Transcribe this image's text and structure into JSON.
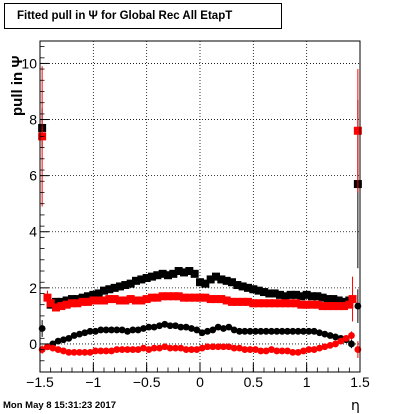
{
  "title": "Fitted pull in Ψ  for Global Rec All EtapT",
  "timestamp": "Mon May  8 15:31:23 2017",
  "chart_data": {
    "type": "scatter",
    "title": "Fitted pull in Ψ  for Global Rec All EtapT",
    "xlabel": "η",
    "ylabel": "pull in Ψ",
    "xlim": [
      -1.5,
      1.5
    ],
    "ylim": [
      -1.0,
      10.8
    ],
    "xticks": [
      -1.5,
      -1,
      -0.5,
      0,
      0.5,
      1,
      1.5
    ],
    "xtick_labels": [
      "−1.5",
      "−1",
      "−0.5",
      "0",
      "0.5",
      "1",
      "1.5"
    ],
    "yticks": [
      0,
      2,
      4,
      6,
      8,
      10
    ],
    "ytick_labels": [
      "0",
      "2",
      "4",
      "6",
      "8",
      "10"
    ],
    "grid": true,
    "series": [
      {
        "color": "#000000",
        "marker": "square",
        "x": [
          -1.48,
          -1.4,
          -1.35,
          -1.3,
          -1.25,
          -1.2,
          -1.15,
          -1.1,
          -1.05,
          -1.0,
          -0.95,
          -0.9,
          -0.85,
          -0.8,
          -0.75,
          -0.7,
          -0.65,
          -0.6,
          -0.55,
          -0.5,
          -0.45,
          -0.4,
          -0.35,
          -0.3,
          -0.25,
          -0.2,
          -0.15,
          -0.1,
          -0.05,
          0.0,
          0.05,
          0.1,
          0.15,
          0.2,
          0.25,
          0.3,
          0.35,
          0.4,
          0.45,
          0.5,
          0.55,
          0.6,
          0.65,
          0.7,
          0.75,
          0.8,
          0.85,
          0.9,
          0.95,
          1.0,
          1.05,
          1.1,
          1.15,
          1.2,
          1.25,
          1.3,
          1.35,
          1.4,
          1.48
        ],
        "y": [
          7.7,
          1.4,
          1.5,
          1.5,
          1.55,
          1.6,
          1.6,
          1.65,
          1.7,
          1.75,
          1.8,
          1.9,
          1.95,
          2.0,
          2.05,
          2.1,
          2.15,
          2.25,
          2.3,
          2.35,
          2.4,
          2.45,
          2.5,
          2.45,
          2.5,
          2.6,
          2.55,
          2.6,
          2.5,
          2.2,
          2.15,
          2.3,
          2.4,
          2.3,
          2.25,
          2.2,
          2.1,
          2.05,
          2.0,
          1.95,
          1.9,
          1.85,
          1.8,
          1.8,
          1.75,
          1.7,
          1.75,
          1.75,
          1.7,
          1.75,
          1.7,
          1.7,
          1.65,
          1.6,
          1.6,
          1.55,
          1.5,
          1.55,
          5.7
        ],
        "yerr": [
          0.7,
          0.1,
          0.1,
          0.1,
          0.08,
          0.08,
          0.08,
          0.08,
          0.08,
          0.08,
          0.08,
          0.08,
          0.08,
          0.08,
          0.08,
          0.08,
          0.08,
          0.08,
          0.08,
          0.08,
          0.08,
          0.08,
          0.08,
          0.08,
          0.08,
          0.08,
          0.08,
          0.08,
          0.08,
          0.08,
          0.08,
          0.08,
          0.08,
          0.08,
          0.08,
          0.08,
          0.08,
          0.08,
          0.08,
          0.08,
          0.08,
          0.08,
          0.08,
          0.08,
          0.08,
          0.08,
          0.08,
          0.08,
          0.08,
          0.08,
          0.08,
          0.08,
          0.08,
          0.08,
          0.1,
          0.1,
          0.1,
          0.1,
          3.0
        ]
      },
      {
        "color": "#ff0000",
        "marker": "square",
        "x": [
          -1.48,
          -1.43,
          -1.4,
          -1.35,
          -1.3,
          -1.25,
          -1.2,
          -1.15,
          -1.1,
          -1.05,
          -1.0,
          -0.95,
          -0.9,
          -0.85,
          -0.8,
          -0.75,
          -0.7,
          -0.65,
          -0.6,
          -0.55,
          -0.5,
          -0.45,
          -0.4,
          -0.35,
          -0.3,
          -0.25,
          -0.2,
          -0.15,
          -0.1,
          -0.05,
          0.0,
          0.05,
          0.1,
          0.15,
          0.2,
          0.25,
          0.3,
          0.35,
          0.4,
          0.45,
          0.5,
          0.55,
          0.6,
          0.65,
          0.7,
          0.75,
          0.8,
          0.85,
          0.9,
          0.95,
          1.0,
          1.05,
          1.1,
          1.15,
          1.2,
          1.25,
          1.3,
          1.35,
          1.4,
          1.43,
          1.48
        ],
        "y": [
          7.4,
          1.65,
          1.45,
          1.3,
          1.35,
          1.4,
          1.45,
          1.45,
          1.5,
          1.5,
          1.55,
          1.55,
          1.55,
          1.6,
          1.6,
          1.55,
          1.55,
          1.6,
          1.55,
          1.55,
          1.6,
          1.65,
          1.65,
          1.7,
          1.7,
          1.7,
          1.7,
          1.65,
          1.65,
          1.65,
          1.65,
          1.65,
          1.6,
          1.6,
          1.6,
          1.55,
          1.5,
          1.5,
          1.5,
          1.5,
          1.45,
          1.45,
          1.45,
          1.45,
          1.45,
          1.45,
          1.45,
          1.45,
          1.45,
          1.4,
          1.4,
          1.4,
          1.4,
          1.35,
          1.35,
          1.35,
          1.35,
          1.35,
          1.4,
          1.6,
          7.6
        ],
        "yerr": [
          2.5,
          0.25,
          0.1,
          0.1,
          0.08,
          0.08,
          0.08,
          0.08,
          0.08,
          0.08,
          0.08,
          0.08,
          0.08,
          0.08,
          0.08,
          0.08,
          0.08,
          0.08,
          0.08,
          0.08,
          0.08,
          0.08,
          0.08,
          0.08,
          0.08,
          0.08,
          0.08,
          0.08,
          0.08,
          0.08,
          0.08,
          0.08,
          0.08,
          0.08,
          0.08,
          0.08,
          0.08,
          0.08,
          0.08,
          0.08,
          0.08,
          0.08,
          0.08,
          0.08,
          0.08,
          0.08,
          0.08,
          0.08,
          0.08,
          0.08,
          0.08,
          0.08,
          0.08,
          0.08,
          0.08,
          0.08,
          0.1,
          0.1,
          0.1,
          0.8,
          2.2
        ]
      },
      {
        "color": "#000000",
        "marker": "circle",
        "x": [
          -1.48,
          -1.43,
          -1.38,
          -1.33,
          -1.28,
          -1.23,
          -1.18,
          -1.13,
          -1.08,
          -1.03,
          -0.98,
          -0.93,
          -0.88,
          -0.83,
          -0.78,
          -0.73,
          -0.68,
          -0.63,
          -0.58,
          -0.53,
          -0.48,
          -0.43,
          -0.38,
          -0.33,
          -0.28,
          -0.23,
          -0.18,
          -0.13,
          -0.08,
          -0.03,
          0.02,
          0.07,
          0.12,
          0.17,
          0.22,
          0.27,
          0.32,
          0.37,
          0.42,
          0.47,
          0.52,
          0.57,
          0.62,
          0.67,
          0.72,
          0.77,
          0.82,
          0.87,
          0.92,
          0.97,
          1.02,
          1.07,
          1.12,
          1.17,
          1.22,
          1.27,
          1.32,
          1.37,
          1.42,
          1.48
        ],
        "y": [
          0.55,
          -0.1,
          0.0,
          0.1,
          0.15,
          0.2,
          0.3,
          0.35,
          0.4,
          0.45,
          0.45,
          0.5,
          0.5,
          0.5,
          0.5,
          0.5,
          0.45,
          0.5,
          0.5,
          0.55,
          0.6,
          0.6,
          0.65,
          0.7,
          0.65,
          0.65,
          0.6,
          0.6,
          0.55,
          0.5,
          0.4,
          0.45,
          0.5,
          0.6,
          0.55,
          0.6,
          0.5,
          0.45,
          0.45,
          0.45,
          0.45,
          0.45,
          0.45,
          0.45,
          0.45,
          0.45,
          0.45,
          0.45,
          0.45,
          0.45,
          0.45,
          0.45,
          0.4,
          0.35,
          0.3,
          0.25,
          0.2,
          0.15,
          0.0,
          1.35
        ],
        "yerr": [
          0.3,
          0.1,
          0.08,
          0.08,
          0.08,
          0.08,
          0.08,
          0.08,
          0.08,
          0.08,
          0.08,
          0.08,
          0.08,
          0.08,
          0.08,
          0.08,
          0.08,
          0.08,
          0.08,
          0.08,
          0.08,
          0.08,
          0.08,
          0.08,
          0.08,
          0.08,
          0.08,
          0.08,
          0.08,
          0.08,
          0.08,
          0.08,
          0.08,
          0.08,
          0.08,
          0.08,
          0.08,
          0.08,
          0.08,
          0.08,
          0.08,
          0.08,
          0.08,
          0.08,
          0.08,
          0.08,
          0.08,
          0.08,
          0.08,
          0.08,
          0.08,
          0.08,
          0.08,
          0.08,
          0.08,
          0.08,
          0.08,
          0.1,
          0.15,
          0.6
        ]
      },
      {
        "color": "#ff0000",
        "marker": "circle",
        "x": [
          -1.48,
          -1.43,
          -1.38,
          -1.33,
          -1.28,
          -1.23,
          -1.18,
          -1.13,
          -1.08,
          -1.03,
          -0.98,
          -0.93,
          -0.88,
          -0.83,
          -0.78,
          -0.73,
          -0.68,
          -0.63,
          -0.58,
          -0.53,
          -0.48,
          -0.43,
          -0.38,
          -0.33,
          -0.28,
          -0.23,
          -0.18,
          -0.13,
          -0.08,
          -0.03,
          0.02,
          0.07,
          0.12,
          0.17,
          0.22,
          0.27,
          0.32,
          0.37,
          0.42,
          0.47,
          0.52,
          0.57,
          0.62,
          0.67,
          0.72,
          0.77,
          0.82,
          0.87,
          0.92,
          0.97,
          1.02,
          1.07,
          1.12,
          1.17,
          1.22,
          1.27,
          1.32,
          1.37,
          1.42,
          1.48
        ],
        "y": [
          -0.2,
          -0.1,
          -0.15,
          -0.2,
          -0.25,
          -0.3,
          -0.3,
          -0.3,
          -0.3,
          -0.3,
          -0.25,
          -0.25,
          -0.25,
          -0.25,
          -0.2,
          -0.2,
          -0.2,
          -0.2,
          -0.2,
          -0.15,
          -0.2,
          -0.15,
          -0.15,
          -0.1,
          -0.15,
          -0.15,
          -0.15,
          -0.2,
          -0.2,
          -0.2,
          -0.15,
          -0.1,
          -0.1,
          -0.1,
          -0.1,
          -0.1,
          -0.15,
          -0.15,
          -0.2,
          -0.2,
          -0.2,
          -0.25,
          -0.25,
          -0.2,
          -0.25,
          -0.25,
          -0.25,
          -0.3,
          -0.3,
          -0.25,
          -0.2,
          -0.2,
          -0.15,
          -0.1,
          -0.05,
          0.0,
          0.1,
          0.2,
          0.3,
          -0.2
        ],
        "yerr": [
          0.15,
          0.1,
          0.08,
          0.08,
          0.08,
          0.08,
          0.08,
          0.08,
          0.08,
          0.08,
          0.08,
          0.08,
          0.08,
          0.08,
          0.08,
          0.08,
          0.08,
          0.08,
          0.08,
          0.08,
          0.08,
          0.08,
          0.08,
          0.08,
          0.08,
          0.08,
          0.08,
          0.08,
          0.08,
          0.08,
          0.08,
          0.08,
          0.08,
          0.08,
          0.08,
          0.08,
          0.08,
          0.08,
          0.08,
          0.08,
          0.08,
          0.08,
          0.08,
          0.08,
          0.08,
          0.08,
          0.08,
          0.08,
          0.08,
          0.08,
          0.08,
          0.08,
          0.08,
          0.08,
          0.08,
          0.08,
          0.08,
          0.1,
          0.15,
          0.3
        ]
      }
    ]
  }
}
